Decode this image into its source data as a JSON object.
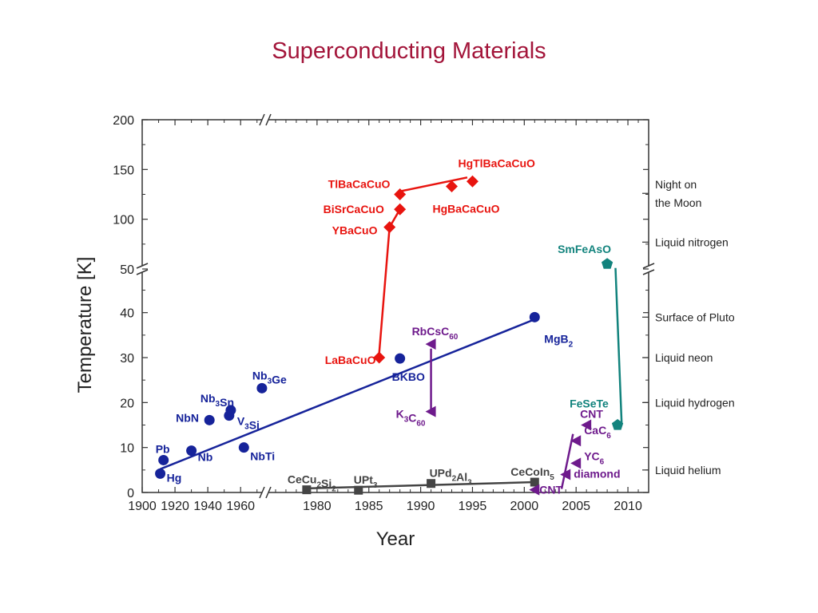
{
  "title": "Superconducting Materials",
  "colors": {
    "conventional": "#16239a",
    "cuprate": "#e8140f",
    "heavy_fermion": "#444444",
    "carbon": "#6e1a8c",
    "iron": "#12837d"
  },
  "chart_data": {
    "type": "scatter",
    "xlabel": "Year",
    "ylabel": "Temperature [K]",
    "x_segments": [
      {
        "range": [
          1900,
          1975
        ],
        "ticks": [
          1900,
          1920,
          1940,
          1960
        ]
      },
      {
        "range": [
          1975,
          2012
        ],
        "ticks": [
          1980,
          1985,
          1990,
          1995,
          2000,
          2005,
          2010
        ]
      }
    ],
    "y_segments": [
      {
        "range": [
          0,
          49
        ],
        "ticks": [
          0,
          10,
          20,
          30,
          40
        ]
      },
      {
        "range": [
          50,
          200
        ],
        "ticks": [
          50,
          100,
          150,
          200
        ]
      }
    ],
    "reference_lines": [
      {
        "label": [
          "Night on",
          "the Moon"
        ],
        "y": 126
      },
      {
        "label": [
          "Liquid nitrogen"
        ],
        "y": 77
      },
      {
        "label": [
          "Surface of Pluto"
        ],
        "y": 39
      },
      {
        "label": [
          "Liquid neon"
        ],
        "y": 30
      },
      {
        "label": [
          "Liquid hydrogen"
        ],
        "y": 20
      },
      {
        "label": [
          "Liquid helium"
        ],
        "y": 5
      }
    ],
    "series": [
      {
        "family": "conventional",
        "color": "#16239a",
        "marker": "circle",
        "points": [
          {
            "label": "Hg",
            "x": 1911,
            "y": 4.2
          },
          {
            "label": "Pb",
            "x": 1913,
            "y": 7.2
          },
          {
            "label": "Nb",
            "x": 1930,
            "y": 9.3
          },
          {
            "label": "NbN",
            "x": 1941,
            "y": 16.1
          },
          {
            "label": "V3Si",
            "x": 1953,
            "y": 17.1
          },
          {
            "label": "Nb3Sn",
            "x": 1954,
            "y": 18.3
          },
          {
            "label": "NbTi",
            "x": 1962,
            "y": 10
          },
          {
            "label": "Nb3Ge",
            "x": 1973,
            "y": 23.2
          },
          {
            "label": "BKBO",
            "x": 1988,
            "y": 29.8
          },
          {
            "label": "MgB2",
            "x": 2001,
            "y": 39
          }
        ]
      },
      {
        "family": "cuprate",
        "color": "#e8140f",
        "marker": "diamond",
        "points": [
          {
            "label": "LaBaCuO",
            "x": 1986,
            "y": 30
          },
          {
            "label": "YBaCuO",
            "x": 1987,
            "y": 92
          },
          {
            "label": "BiSrCaCuO",
            "x": 1988,
            "y": 110
          },
          {
            "label": "TlBaCaCuO",
            "x": 1988,
            "y": 125
          },
          {
            "label": "HgBaCaCuO",
            "x": 1993,
            "y": 133
          },
          {
            "label": "HgTlBaCaCuO",
            "x": 1995,
            "y": 138
          }
        ]
      },
      {
        "family": "heavy_fermion",
        "color": "#444444",
        "marker": "square",
        "points": [
          {
            "label": "CeCu2Si2",
            "x": 1979,
            "y": 0.6
          },
          {
            "label": "UPt3",
            "x": 1984,
            "y": 0.5
          },
          {
            "label": "UPd2Al3",
            "x": 1991,
            "y": 2
          },
          {
            "label": "CeCoIn5",
            "x": 2001,
            "y": 2.3
          }
        ]
      },
      {
        "family": "carbon",
        "color": "#6e1a8c",
        "marker": "triangle",
        "points": [
          {
            "label": "K3C60",
            "x": 1991,
            "y": 18
          },
          {
            "label": "RbCsC60",
            "x": 1991,
            "y": 33
          },
          {
            "label": "CNT",
            "x": 2001,
            "y": 0.6
          },
          {
            "label": "CNT",
            "x": 2006,
            "y": 15
          },
          {
            "label": "diamond",
            "x": 2004,
            "y": 4
          },
          {
            "label": "CaC6",
            "x": 2005,
            "y": 11.5
          },
          {
            "label": "YC6",
            "x": 2005,
            "y": 6.5
          }
        ]
      },
      {
        "family": "iron",
        "color": "#12837d",
        "marker": "pentagon",
        "points": [
          {
            "label": "FeSeTe",
            "x": 2009,
            "y": 15
          },
          {
            "label": "SmFeAsO",
            "x": 2008,
            "y": 55
          }
        ]
      }
    ],
    "labels": {
      "conventional": [
        {
          "main": "Hg",
          "sub": ""
        },
        {
          "main": "Pb",
          "sub": ""
        },
        {
          "main": "Nb",
          "sub": ""
        },
        {
          "main": "NbN",
          "sub": ""
        },
        {
          "parts": [
            {
              "t": "V"
            },
            {
              "t": "3",
              "sub": true
            },
            {
              "t": "Si"
            }
          ]
        },
        {
          "parts": [
            {
              "t": "Nb"
            },
            {
              "t": "3",
              "sub": true
            },
            {
              "t": "Sn"
            }
          ]
        },
        {
          "main": "NbTi",
          "sub": ""
        },
        {
          "parts": [
            {
              "t": "Nb"
            },
            {
              "t": "3",
              "sub": true
            },
            {
              "t": "Ge"
            }
          ]
        },
        {
          "main": "BKBO",
          "sub": ""
        },
        {
          "parts": [
            {
              "t": "MgB"
            },
            {
              "t": "2",
              "sub": true
            }
          ]
        }
      ],
      "cuprate": [
        {
          "main": "LaBaCuO"
        },
        {
          "main": "YBaCuO"
        },
        {
          "main": "BiSrCaCuO"
        },
        {
          "main": "TlBaCaCuO"
        },
        {
          "main": "HgBaCaCuO"
        },
        {
          "main": "HgTlBaCaCuO"
        }
      ],
      "heavy_fermion": [
        {
          "parts": [
            {
              "t": "CeCu"
            },
            {
              "t": "2",
              "sub": true
            },
            {
              "t": "Si"
            },
            {
              "t": "2",
              "sub": true
            }
          ]
        },
        {
          "parts": [
            {
              "t": "UPt"
            },
            {
              "t": "3",
              "sub": true
            }
          ]
        },
        {
          "parts": [
            {
              "t": "UPd"
            },
            {
              "t": "2",
              "sub": true
            },
            {
              "t": "Al"
            },
            {
              "t": "3",
              "sub": true
            }
          ]
        },
        {
          "parts": [
            {
              "t": "CeCoIn"
            },
            {
              "t": "5",
              "sub": true
            }
          ]
        }
      ],
      "carbon": [
        {
          "parts": [
            {
              "t": "K"
            },
            {
              "t": "3",
              "sub": true
            },
            {
              "t": "C"
            },
            {
              "t": "60",
              "sub": true
            }
          ]
        },
        {
          "parts": [
            {
              "t": "RbCsC"
            },
            {
              "t": "60",
              "sub": true
            }
          ]
        },
        {
          "main": "CNT"
        },
        {
          "main": "CNT"
        },
        {
          "main": "diamond"
        },
        {
          "parts": [
            {
              "t": "CaC"
            },
            {
              "t": "6",
              "sub": true
            }
          ]
        },
        {
          "parts": [
            {
              "t": "YC"
            },
            {
              "t": "6",
              "sub": true
            }
          ]
        }
      ],
      "iron": [
        {
          "main": "FeSeTe"
        },
        {
          "main": "SmFeAsO"
        }
      ]
    },
    "trend_lines": [
      {
        "family": "conventional",
        "from": {
          "x": 1911,
          "y": 5.2
        },
        "to": {
          "x": 2001,
          "y": 38.5
        }
      },
      {
        "family": "cuprate",
        "from": {
          "x": 1986,
          "y": 31
        },
        "to": {
          "x": 1987,
          "y": 92
        }
      },
      {
        "family": "cuprate",
        "from": {
          "x": 1987,
          "y": 92
        },
        "to": {
          "x": 1988,
          "y": 110
        }
      },
      {
        "family": "cuprate",
        "from": {
          "x": 1988,
          "y": 128
        },
        "to": {
          "x": 1994.5,
          "y": 142
        }
      },
      {
        "family": "heavy_fermion",
        "from": {
          "x": 1979,
          "y": 0.9
        },
        "to": {
          "x": 2001,
          "y": 2.3
        }
      },
      {
        "family": "carbon",
        "from": {
          "x": 1991,
          "y": 32
        },
        "to": {
          "x": 1991,
          "y": 18
        }
      },
      {
        "family": "carbon",
        "from": {
          "x": 2004.7,
          "y": 13
        },
        "to": {
          "x": 2003.6,
          "y": 0.8
        }
      },
      {
        "family": "iron",
        "from": {
          "x": 2008.8,
          "y": 51
        },
        "to": {
          "x": 2009.4,
          "y": 15
        }
      }
    ]
  }
}
